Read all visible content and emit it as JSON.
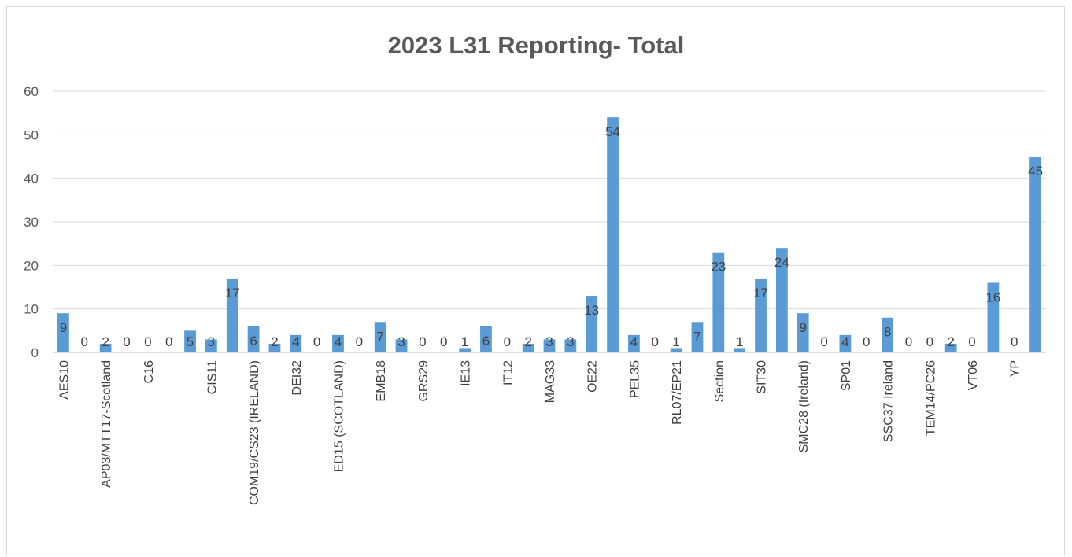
{
  "chart_data": {
    "type": "bar",
    "title": "2023 L31 Reporting- Total",
    "xlabel": "",
    "ylabel": "",
    "ylim": [
      0,
      60
    ],
    "yticks": [
      0,
      10,
      20,
      30,
      40,
      50,
      60
    ],
    "grid": true,
    "legend": "none",
    "bar_color": "#5b9bd5",
    "bars": [
      {
        "label": "AES10",
        "value": 9
      },
      {
        "label": "",
        "value": 0
      },
      {
        "label": "AP03/MTT17-Scotland",
        "value": 2
      },
      {
        "label": "",
        "value": 0
      },
      {
        "label": "C16",
        "value": 0
      },
      {
        "label": "",
        "value": 0
      },
      {
        "label": "",
        "value": 5
      },
      {
        "label": "CIS11",
        "value": 3
      },
      {
        "label": "",
        "value": 17
      },
      {
        "label": "COM19/CS23 (IRELAND)",
        "value": 6
      },
      {
        "label": "",
        "value": 2
      },
      {
        "label": "DEI32",
        "value": 4
      },
      {
        "label": "",
        "value": 0
      },
      {
        "label": "ED15 (SCOTLAND)",
        "value": 4
      },
      {
        "label": "",
        "value": 0
      },
      {
        "label": "EMB18",
        "value": 7
      },
      {
        "label": "",
        "value": 3
      },
      {
        "label": "GRS29",
        "value": 0
      },
      {
        "label": "",
        "value": 0
      },
      {
        "label": "IE13",
        "value": 1
      },
      {
        "label": "",
        "value": 6
      },
      {
        "label": "IT12",
        "value": 0
      },
      {
        "label": "",
        "value": 2
      },
      {
        "label": "MAG33",
        "value": 3
      },
      {
        "label": "",
        "value": 3
      },
      {
        "label": "OE22",
        "value": 13
      },
      {
        "label": "",
        "value": 54
      },
      {
        "label": "PEL35",
        "value": 4
      },
      {
        "label": "",
        "value": 0
      },
      {
        "label": "RL07/EP21",
        "value": 1
      },
      {
        "label": "",
        "value": 7
      },
      {
        "label": "Section",
        "value": 23
      },
      {
        "label": "",
        "value": 1
      },
      {
        "label": "SIT30",
        "value": 17
      },
      {
        "label": "",
        "value": 24
      },
      {
        "label": "SMC28 (Ireland)",
        "value": 9
      },
      {
        "label": "",
        "value": 0
      },
      {
        "label": "SP01",
        "value": 4
      },
      {
        "label": "",
        "value": 0
      },
      {
        "label": "SSC37 Ireland",
        "value": 8
      },
      {
        "label": "",
        "value": 0
      },
      {
        "label": "TEM14/PC26",
        "value": 0
      },
      {
        "label": "",
        "value": 2
      },
      {
        "label": "VT06",
        "value": 0
      },
      {
        "label": "",
        "value": 16
      },
      {
        "label": "YP",
        "value": 0
      },
      {
        "label": "",
        "value": 45
      }
    ]
  }
}
